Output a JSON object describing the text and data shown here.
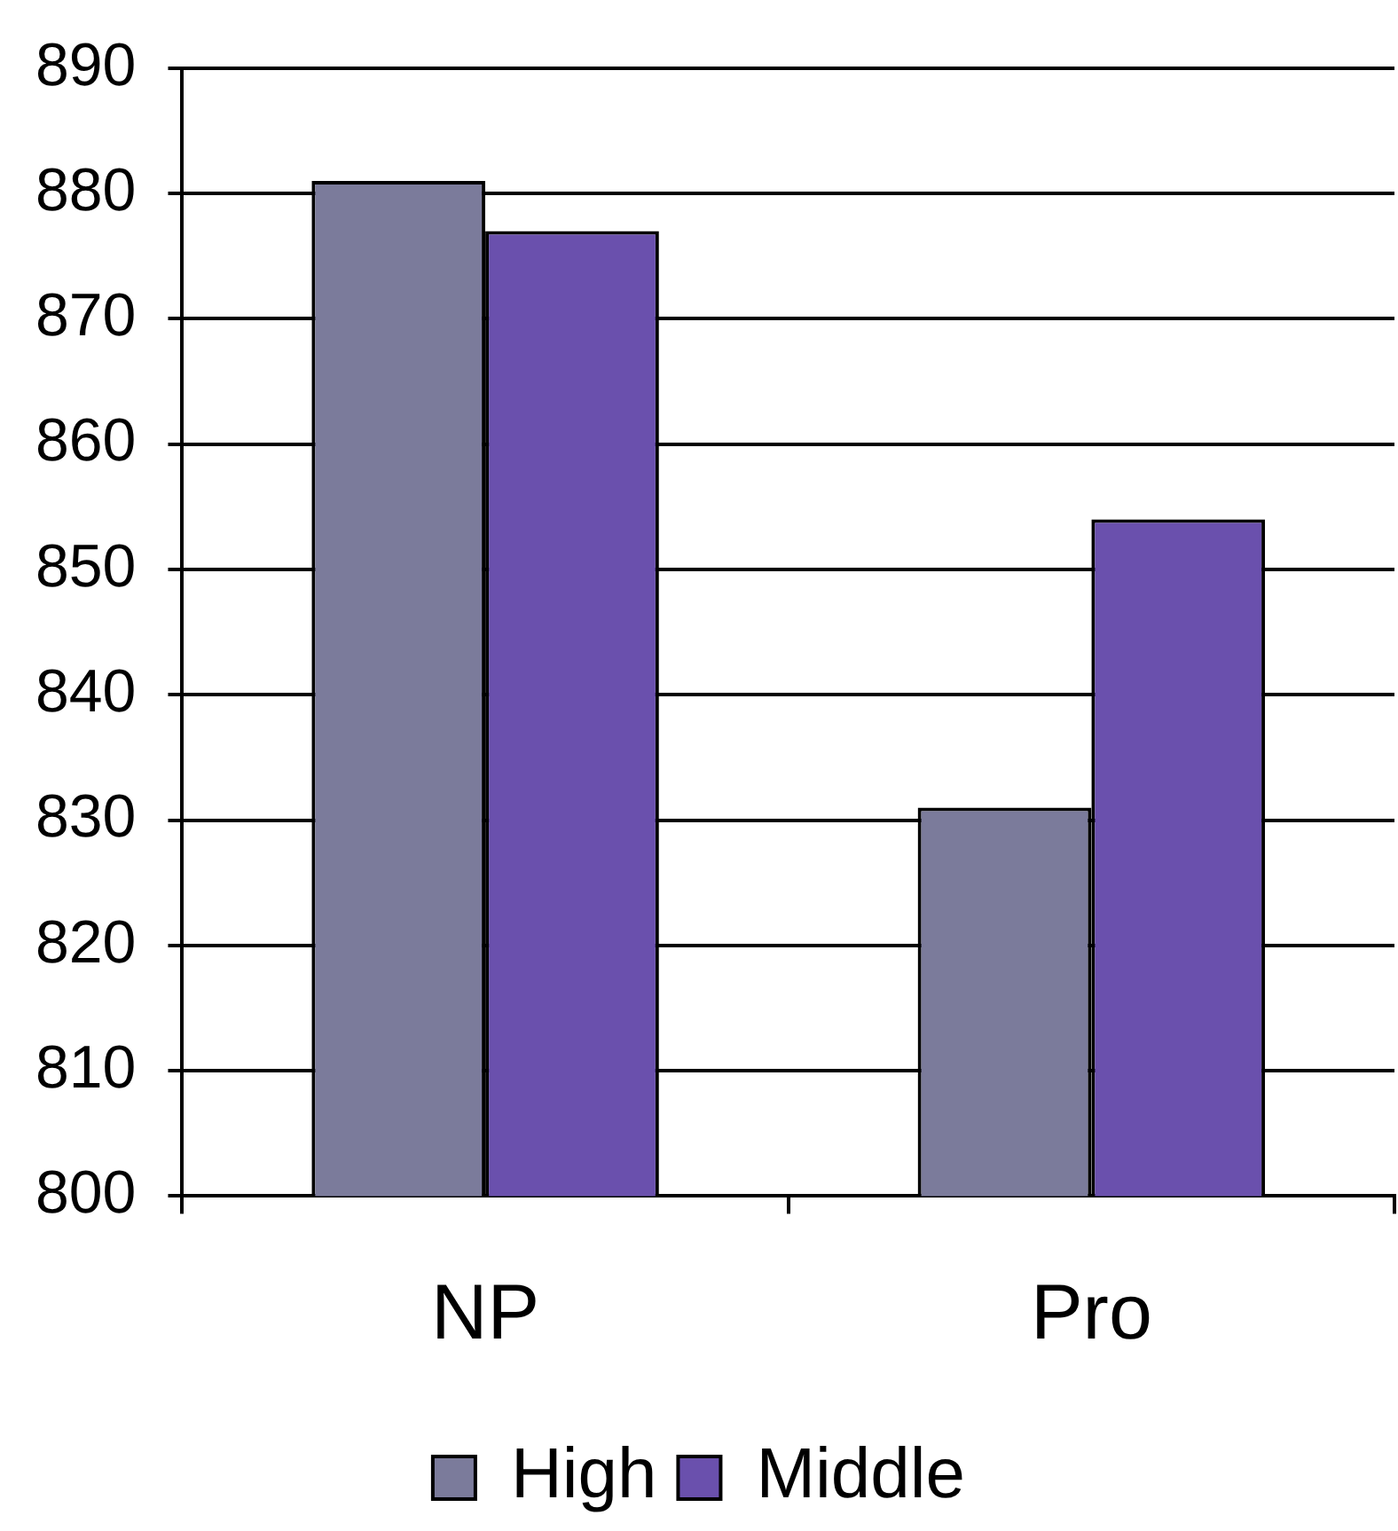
{
  "chart_data": {
    "type": "bar",
    "categories": [
      "NP",
      "Pro"
    ],
    "series": [
      {
        "name": "High",
        "color": "#7b7b9b",
        "values": [
          881,
          831
        ]
      },
      {
        "name": "Middle",
        "color": "#6a50ad",
        "values": [
          877,
          854
        ]
      }
    ],
    "ylim": [
      800,
      890
    ],
    "yticks": [
      800,
      810,
      820,
      830,
      840,
      850,
      860,
      870,
      880,
      890
    ],
    "grid": "y",
    "legend": "bottom"
  }
}
